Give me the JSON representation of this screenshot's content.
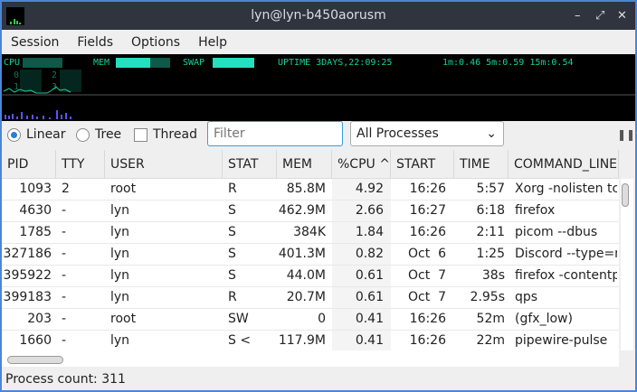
{
  "window": {
    "title": "lyn@lyn-b450aorusm"
  },
  "menu": [
    "Session",
    "Fields",
    "Options",
    "Help"
  ],
  "monitor": {
    "cpu_label": "CPU",
    "mem_label": "MEM",
    "swap_label": "SWAP",
    "uptime": "UPTIME 3DAYS,22:09:25",
    "load": "1m:0.46 5m:0.59 15m:0.54",
    "cores": [
      "0",
      "1",
      "2",
      "3"
    ],
    "color": "#17d19a",
    "bar_color": "#5555ff"
  },
  "controls": {
    "linear": "Linear",
    "tree": "Tree",
    "thread": "Thread",
    "filter_placeholder": "Filter",
    "view": "All Processes",
    "selected": "linear"
  },
  "columns": [
    "PID",
    "TTY",
    "USER",
    "STAT",
    "MEM",
    "%CPU ^",
    "START",
    "TIME",
    "COMMAND_LINE"
  ],
  "rows": [
    [
      "1093",
      "2",
      "root",
      "R",
      "85.8M",
      "4.92",
      "16:26",
      "5:57",
      "Xorg -nolisten tc"
    ],
    [
      "4630",
      "-",
      "lyn",
      "S",
      "462.9M",
      "2.66",
      "16:27",
      "6:18",
      "firefox"
    ],
    [
      "1785",
      "-",
      "lyn",
      "S",
      "384K",
      "1.84",
      "16:26",
      "2:11",
      "picom --dbus"
    ],
    [
      "327186",
      "-",
      "lyn",
      "S",
      "401.3M",
      "0.82",
      "Oct  6",
      "1:25",
      "Discord --type=re"
    ],
    [
      "395922",
      "-",
      "lyn",
      "S",
      "44.0M",
      "0.61",
      "Oct  7",
      "38s",
      "firefox -contentp"
    ],
    [
      "399183",
      "-",
      "lyn",
      "R",
      "20.7M",
      "0.61",
      "Oct  7",
      "2.95s",
      "qps"
    ],
    [
      "203",
      "-",
      "root",
      "SW",
      "0",
      "0.41",
      "16:26",
      "52m",
      "(gfx_low)"
    ],
    [
      "1660",
      "-",
      "lyn",
      "S <",
      "117.9M",
      "0.41",
      "16:26",
      "22m",
      "pipewire-pulse"
    ]
  ],
  "status": "Process count: 311"
}
